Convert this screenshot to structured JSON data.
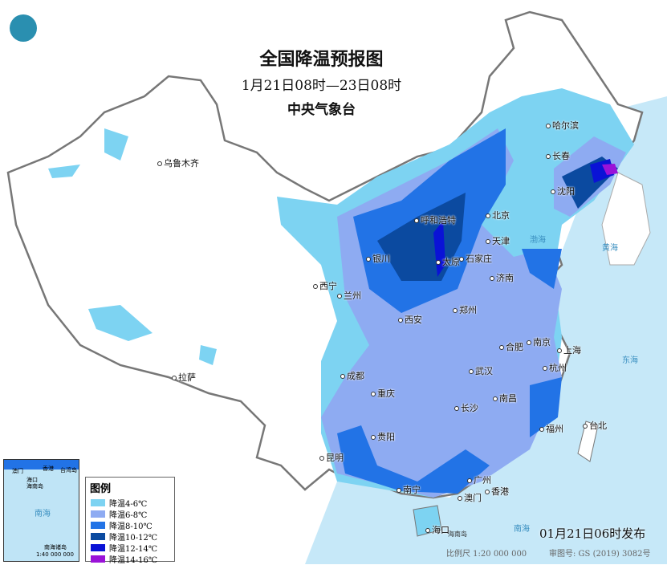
{
  "title": "全国降温预报图",
  "period": "1月21日08时—23日08时",
  "issuer": "中央气象台",
  "legend": {
    "title": "图例",
    "items": [
      {
        "label": "降温4-6℃",
        "color": "#7dd3f2"
      },
      {
        "label": "降温6-8℃",
        "color": "#8eabf2"
      },
      {
        "label": "降温8-10℃",
        "color": "#2273e6"
      },
      {
        "label": "降温10-12℃",
        "color": "#0b4aa0"
      },
      {
        "label": "降温12-14℃",
        "color": "#0a12d6"
      },
      {
        "label": "降温14-16℃",
        "color": "#9a12d8"
      }
    ]
  },
  "cities": [
    "乌鲁木齐",
    "哈尔滨",
    "长春",
    "沈阳",
    "呼和浩特",
    "北京",
    "天津",
    "银川",
    "太原",
    "石家庄",
    "西宁",
    "兰州",
    "济南",
    "西安",
    "郑州",
    "拉萨",
    "合肥",
    "南京",
    "上海",
    "成都",
    "武汉",
    "杭州",
    "重庆",
    "长沙",
    "南昌",
    "贵阳",
    "福州",
    "台北",
    "昆明",
    "南宁",
    "广州",
    "香港",
    "澳门",
    "海口"
  ],
  "seas": [
    "渤海",
    "黄海",
    "东海",
    "南海",
    "海南岛"
  ],
  "inset": {
    "labels": [
      "澳门",
      "香港",
      "台湾岛",
      "海口",
      "海南岛",
      "南海",
      "南海诸岛"
    ],
    "scale": "1:40 000 000"
  },
  "issued": "01月21日06时发布",
  "scale": "比例尺 1:20 000 000",
  "review": "审图号: GS (2019) 3082号"
}
